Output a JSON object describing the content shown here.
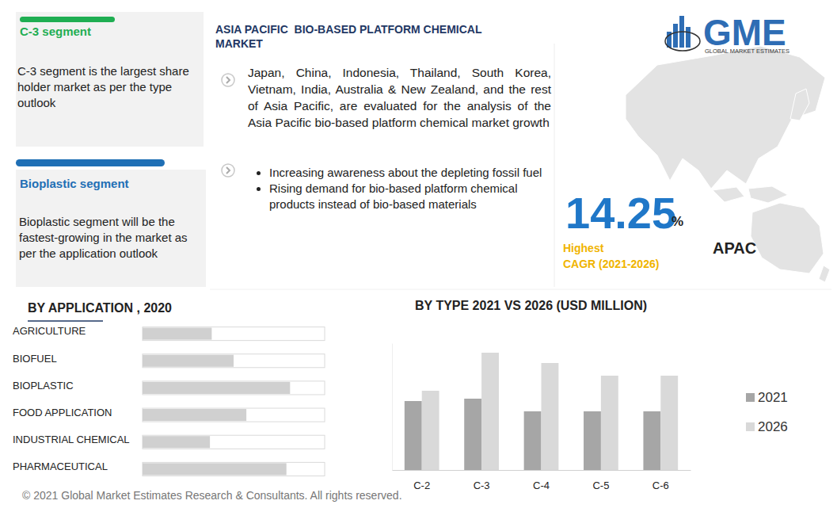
{
  "header": {
    "title": "ASIA PACIFIC  BIO-BASED PLATFORM CHEMICAL MARKET",
    "logo": {
      "mark": "GME",
      "name": "GLOBAL MARKET ESTIMATES"
    }
  },
  "highlights": [
    {
      "title": "C-3 segment",
      "text": "C-3 segment is the largest share holder market as per the type outlook"
    },
    {
      "title": "Bioplastic segment",
      "text": "Bioplastic segment will be the fastest-growing in the market as per the application outlook"
    }
  ],
  "summary": {
    "countries_text": "Japan, China, Indonesia, Thailand, South Korea, Vietnam, India, Australia & New Zealand, and the rest of Asia Pacific, are evaluated for the analysis of the Asia Pacific bio-based platform chemical market  growth",
    "drivers": [
      "Increasing awareness about the depleting fossil fuel",
      "Rising demand for bio-based platform chemical products instead of bio-based materials"
    ]
  },
  "cagr": {
    "value": 14.25,
    "unit": "%",
    "label": [
      "Highest",
      "CAGR (2021-2026)"
    ],
    "region": "APAC"
  },
  "footer": "© 2021 Global Market Estimates Research & Consultants. All rights reserved.",
  "chart_data": [
    {
      "type": "bar",
      "title": "BY  APPLICATION , 2020",
      "orientation": "horizontal",
      "categories": [
        "AGRICULTURE",
        "BIOFUEL",
        "BIOPLASTIC",
        "FOOD APPLICATION",
        "INDUSTRIAL CHEMICAL",
        "PHARMACEUTICAL"
      ],
      "values": [
        38,
        50,
        81,
        57,
        37,
        79
      ],
      "color": "#d0d0d0",
      "xlim": [
        0,
        100
      ],
      "tick_labels": "y"
    },
    {
      "type": "bar",
      "title": "BY TYPE  2021 VS 2026 (USD MILLION)",
      "categories": [
        "C-2",
        "C-3",
        "C-4",
        "C-5",
        "C-6"
      ],
      "series": [
        {
          "name": "2021",
          "color": "#a6a6a6",
          "values": [
            87,
            90,
            74,
            74,
            74
          ]
        },
        {
          "name": "2026",
          "color": "#d9d9d9",
          "values": [
            100,
            148,
            135,
            119,
            119
          ]
        }
      ],
      "ylim": [
        0,
        160
      ],
      "tick_labels": "x",
      "legend": "right"
    }
  ]
}
